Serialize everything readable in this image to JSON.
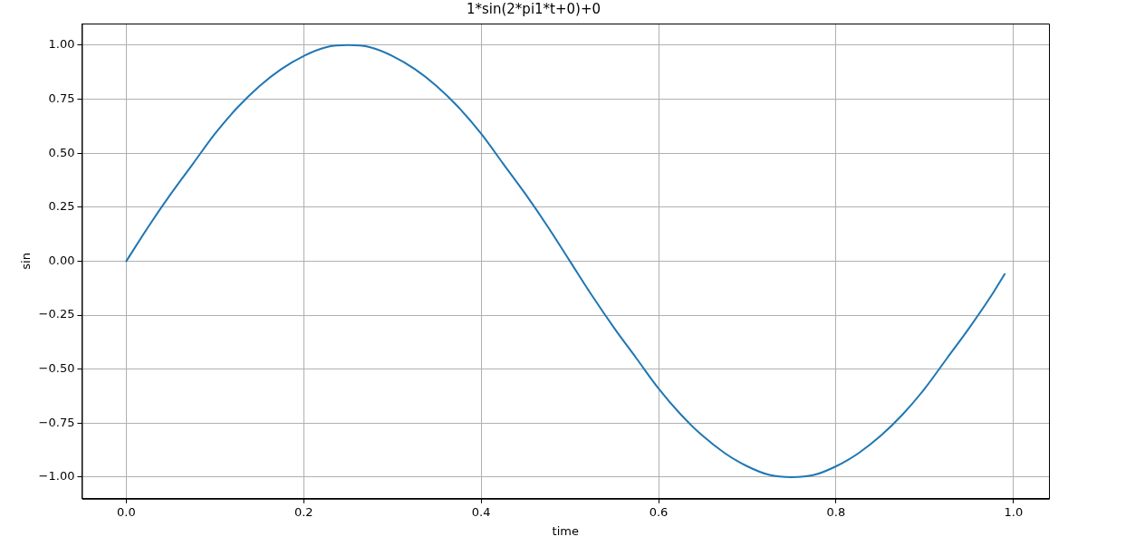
{
  "chart_data": {
    "type": "line",
    "title": "1*sin(2*pi1*t+0)+0",
    "xlabel": "time",
    "ylabel": "sin",
    "x": [
      0,
      0.025,
      0.05,
      0.075,
      0.1,
      0.125,
      0.15,
      0.175,
      0.2,
      0.225,
      0.25,
      0.275,
      0.3,
      0.325,
      0.35,
      0.375,
      0.4,
      0.425,
      0.45,
      0.475,
      0.5,
      0.525,
      0.55,
      0.575,
      0.6,
      0.625,
      0.65,
      0.675,
      0.7,
      0.725,
      0.75,
      0.775,
      0.8,
      0.825,
      0.85,
      0.875,
      0.9,
      0.925,
      0.95,
      0.975,
      0.99
    ],
    "series": [
      {
        "color": "#1f77b4",
        "values": [
          0,
          0.16,
          0.31,
          0.45,
          0.59,
          0.71,
          0.81,
          0.89,
          0.95,
          0.99,
          1.0,
          0.99,
          0.95,
          0.89,
          0.81,
          0.71,
          0.59,
          0.45,
          0.31,
          0.16,
          0,
          -0.16,
          -0.31,
          -0.45,
          -0.59,
          -0.71,
          -0.81,
          -0.89,
          -0.95,
          -0.99,
          -1.0,
          -0.99,
          -0.95,
          -0.89,
          -0.81,
          -0.71,
          -0.59,
          -0.45,
          -0.31,
          -0.16,
          -0.06
        ]
      }
    ],
    "xlim": [
      -0.05,
      1.04
    ],
    "ylim": [
      -1.1,
      1.1
    ],
    "xticks": [
      {
        "value": 0,
        "label": "0.0"
      },
      {
        "value": 0.2,
        "label": "0.2"
      },
      {
        "value": 0.4,
        "label": "0.4"
      },
      {
        "value": 0.6,
        "label": "0.6"
      },
      {
        "value": 0.8,
        "label": "0.8"
      },
      {
        "value": 1,
        "label": "1.0"
      }
    ],
    "yticks": [
      {
        "value": -1,
        "label": "−1.00"
      },
      {
        "value": -0.75,
        "label": "−0.75"
      },
      {
        "value": -0.5,
        "label": "−0.50"
      },
      {
        "value": -0.25,
        "label": "−0.25"
      },
      {
        "value": 0,
        "label": "0.00"
      },
      {
        "value": 0.25,
        "label": "0.25"
      },
      {
        "value": 0.5,
        "label": "0.50"
      },
      {
        "value": 0.75,
        "label": "0.75"
      },
      {
        "value": 1,
        "label": "1.00"
      }
    ],
    "grid": true,
    "legend": false,
    "marker": "none",
    "line_style": "solid"
  }
}
